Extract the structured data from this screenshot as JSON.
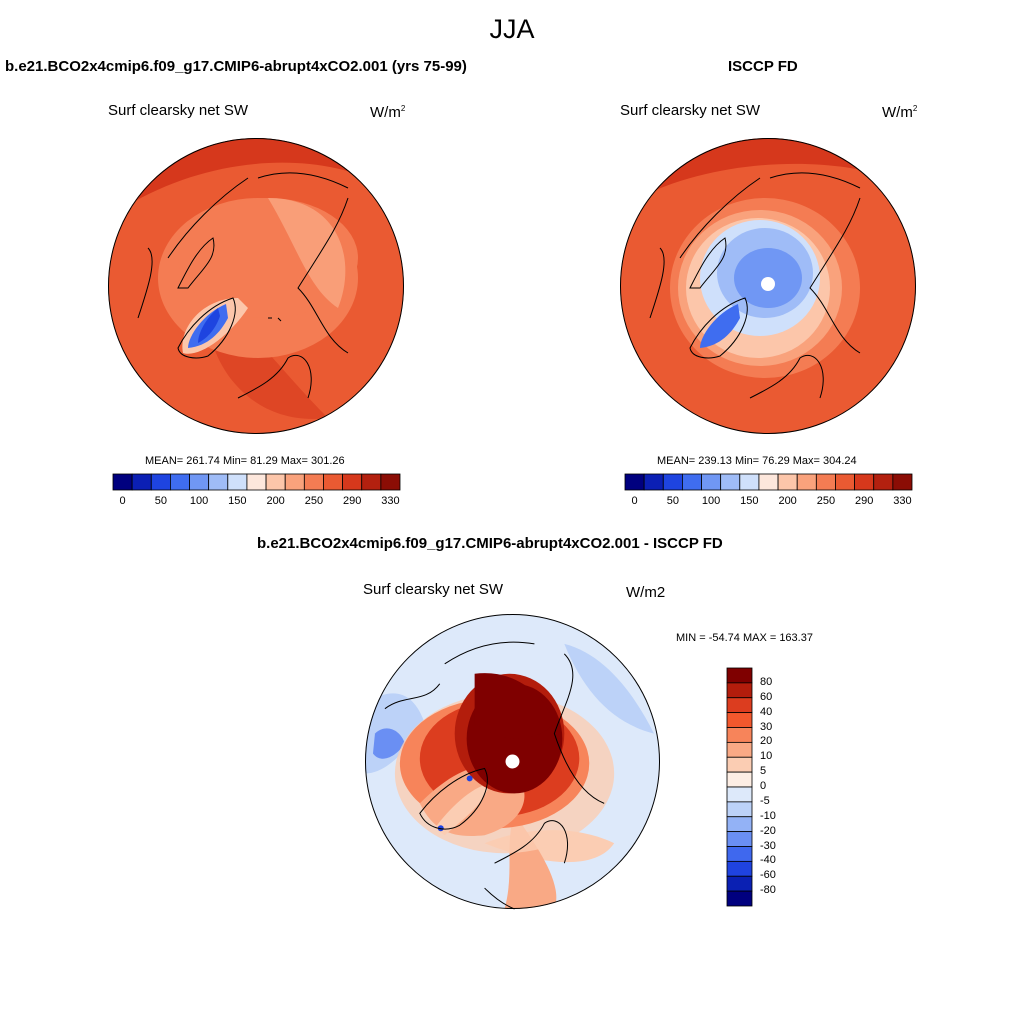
{
  "figure": {
    "title": "JJA"
  },
  "panels": {
    "model": {
      "title": "b.e21.BCO2x4cmip6.f09_g17.CMIP6-abrupt4xCO2.001 (yrs 75-99)",
      "variable": "Surf clearsky net SW",
      "units_base": "W/m",
      "units_exp": "2",
      "stats": "MEAN= 261.74  Min=  81.29  Max= 301.26"
    },
    "obs": {
      "title": "ISCCP FD",
      "variable": "Surf clearsky net SW",
      "units_base": "W/m",
      "units_exp": "2",
      "stats": "MEAN= 239.13  Min=  76.29  Max= 304.24"
    },
    "diff": {
      "title": "b.e21.BCO2x4cmip6.f09_g17.CMIP6-abrupt4xCO2.001 - ISCCP FD",
      "variable": "Surf clearsky net SW",
      "units": "W/m2",
      "stats": "MIN = -54.74 MAX = 163.37"
    }
  },
  "chart_data": [
    {
      "type": "heatmap",
      "projection": "north-polar-stereographic",
      "title": "b.e21.BCO2x4cmip6.f09_g17.CMIP6-abrupt4xCO2.001 (yrs 75-99)",
      "variable": "Surf clearsky net SW",
      "units": "W/m2",
      "mean": 261.74,
      "min": 81.29,
      "max": 301.26,
      "colorbar": {
        "orientation": "horizontal",
        "tick_labels": [
          "0",
          "50",
          "100",
          "150",
          "200",
          "250",
          "290",
          "330"
        ],
        "colors": [
          "#00007f",
          "#0b1fb4",
          "#1e44e0",
          "#3f6df0",
          "#7097f4",
          "#9fbcf7",
          "#cfe0fb",
          "#fde7dc",
          "#fcc6aa",
          "#f9a27c",
          "#f47c53",
          "#ea5a32",
          "#d6381c",
          "#b3200f",
          "#8b0d05"
        ]
      }
    },
    {
      "type": "heatmap",
      "projection": "north-polar-stereographic",
      "title": "ISCCP FD",
      "variable": "Surf clearsky net SW",
      "units": "W/m2",
      "mean": 239.13,
      "min": 76.29,
      "max": 304.24,
      "colorbar": {
        "orientation": "horizontal",
        "tick_labels": [
          "0",
          "50",
          "100",
          "150",
          "200",
          "250",
          "290",
          "330"
        ],
        "colors": [
          "#00007f",
          "#0b1fb4",
          "#1e44e0",
          "#3f6df0",
          "#7097f4",
          "#9fbcf7",
          "#cfe0fb",
          "#fde7dc",
          "#fcc6aa",
          "#f9a27c",
          "#f47c53",
          "#ea5a32",
          "#d6381c",
          "#b3200f",
          "#8b0d05"
        ]
      }
    },
    {
      "type": "heatmap",
      "projection": "north-polar-stereographic",
      "title": "b.e21.BCO2x4cmip6.f09_g17.CMIP6-abrupt4xCO2.001 - ISCCP FD",
      "variable": "Surf clearsky net SW",
      "units": "W/m2",
      "min": -54.74,
      "max": 163.37,
      "colorbar": {
        "orientation": "vertical",
        "tick_labels": [
          "80",
          "60",
          "40",
          "30",
          "20",
          "10",
          "5",
          "0",
          "-5",
          "-10",
          "-20",
          "-30",
          "-40",
          "-60",
          "-80"
        ],
        "colors": [
          "#7f0000",
          "#b31d0c",
          "#dc3d1f",
          "#f2582d",
          "#f7845a",
          "#f9a985",
          "#fbcdb3",
          "#fdeee4",
          "#dde9fa",
          "#bcd2f8",
          "#93b2f6",
          "#6a8ff3",
          "#3f68ee",
          "#1f43e0",
          "#0a20b3",
          "#00007f"
        ]
      }
    }
  ]
}
